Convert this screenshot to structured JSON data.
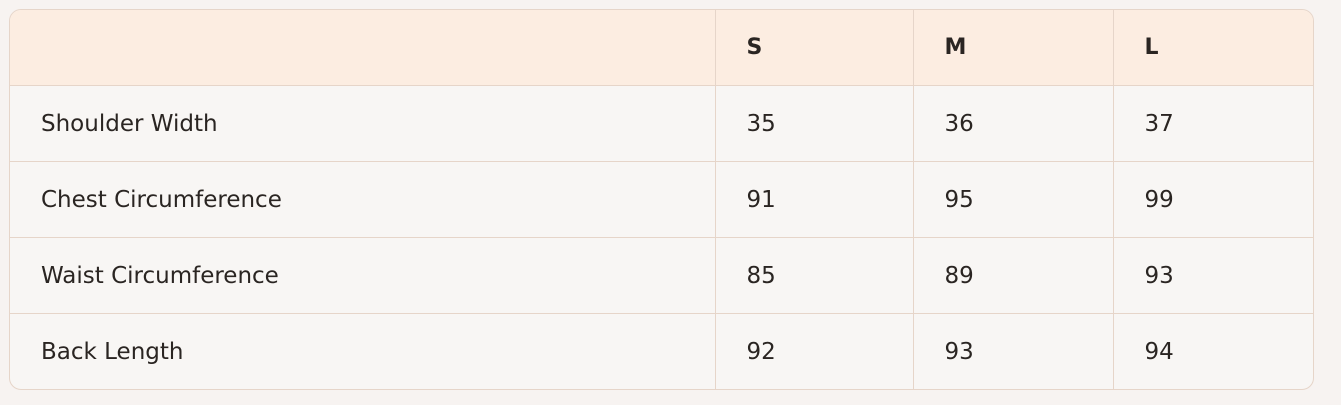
{
  "table": {
    "headers": [
      "",
      "S",
      "M",
      "L"
    ],
    "rows": [
      {
        "label": "Shoulder Width",
        "values": [
          "35",
          "36",
          "37"
        ]
      },
      {
        "label": "Chest Circumference",
        "values": [
          "91",
          "95",
          "99"
        ]
      },
      {
        "label": "Waist Circumference",
        "values": [
          "85",
          "89",
          "93"
        ]
      },
      {
        "label": "Back Length",
        "values": [
          "92",
          "93",
          "94"
        ]
      }
    ]
  },
  "colors": {
    "header_bg": "#fcede1",
    "body_bg": "#f8f6f4",
    "border": "#e6d5c9"
  }
}
